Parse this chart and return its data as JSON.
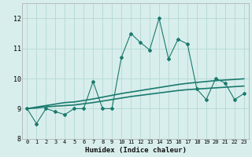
{
  "xlabel": "Humidex (Indice chaleur)",
  "x": [
    0,
    1,
    2,
    3,
    4,
    5,
    6,
    7,
    8,
    9,
    10,
    11,
    12,
    13,
    14,
    15,
    16,
    17,
    18,
    19,
    20,
    21,
    22,
    23
  ],
  "y_main": [
    9.0,
    8.5,
    9.0,
    8.9,
    8.8,
    9.0,
    9.0,
    9.9,
    9.0,
    9.0,
    10.7,
    11.5,
    11.2,
    10.95,
    12.0,
    10.65,
    11.3,
    11.15,
    9.65,
    9.3,
    10.0,
    9.85,
    9.3,
    9.5
  ],
  "y_trend1": [
    9.0,
    9.05,
    9.1,
    9.15,
    9.2,
    9.22,
    9.27,
    9.32,
    9.38,
    9.44,
    9.5,
    9.55,
    9.6,
    9.65,
    9.7,
    9.75,
    9.8,
    9.84,
    9.87,
    9.9,
    9.93,
    9.95,
    9.97,
    9.99
  ],
  "y_trend2": [
    9.0,
    9.02,
    9.06,
    9.08,
    9.1,
    9.12,
    9.16,
    9.2,
    9.25,
    9.3,
    9.35,
    9.4,
    9.44,
    9.48,
    9.52,
    9.56,
    9.6,
    9.63,
    9.65,
    9.67,
    9.69,
    9.71,
    9.73,
    9.75
  ],
  "bg_color": "#d8eeec",
  "grid_color": "#b4d8d4",
  "line_color": "#1a7a6e",
  "ylim": [
    8.0,
    12.5
  ],
  "xlim": [
    -0.5,
    23.5
  ],
  "yticks": [
    8,
    9,
    10,
    11,
    12
  ],
  "xticks": [
    0,
    1,
    2,
    3,
    4,
    5,
    6,
    7,
    8,
    9,
    10,
    11,
    12,
    13,
    14,
    15,
    16,
    17,
    18,
    19,
    20,
    21,
    22,
    23
  ]
}
